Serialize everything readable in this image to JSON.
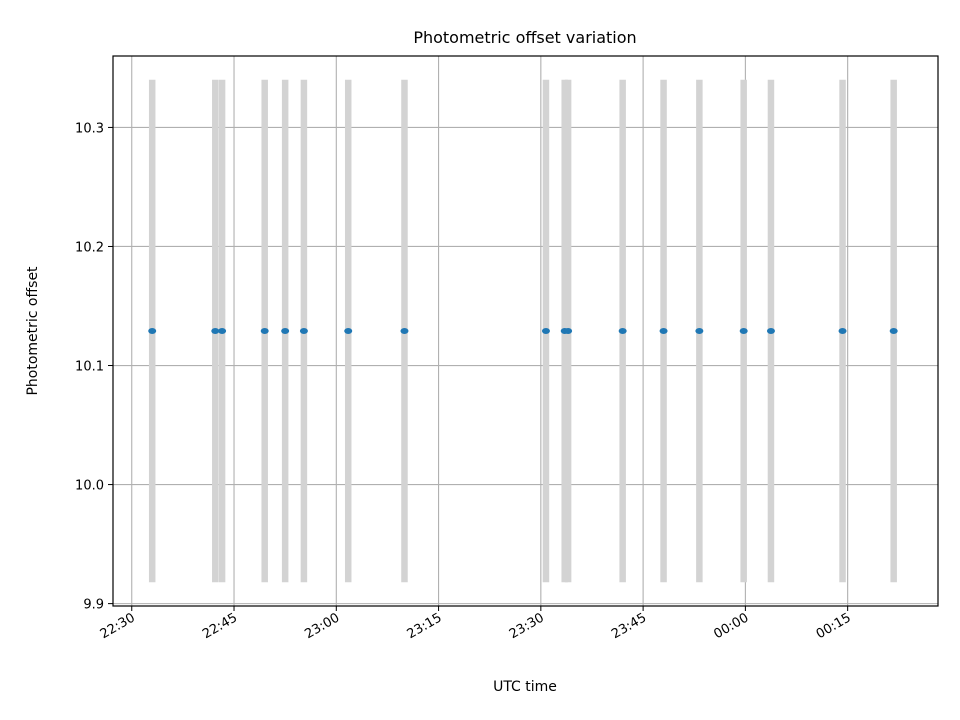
{
  "chart_data": {
    "type": "scatter",
    "title": "Photometric offset variation",
    "xlabel": "UTC time",
    "ylabel": "Photometric offset",
    "xlim": [
      "22:27:15",
      "00:28:15"
    ],
    "ylim": [
      9.898,
      10.36
    ],
    "x_ticks": [
      "22:30",
      "22:45",
      "23:00",
      "23:15",
      "23:30",
      "23:45",
      "00:00",
      "00:15"
    ],
    "y_ticks": [
      "9.9",
      "10.0",
      "10.1",
      "10.2",
      "10.3"
    ],
    "grid": true,
    "marker_color": "#1f77b4",
    "errorbar_color": "#d3d3d3",
    "errorbar_range": [
      9.918,
      10.34
    ],
    "points": [
      {
        "x": "22:33:00",
        "y": 10.129
      },
      {
        "x": "22:42:15",
        "y": 10.129
      },
      {
        "x": "22:43:15",
        "y": 10.129
      },
      {
        "x": "22:49:30",
        "y": 10.129
      },
      {
        "x": "22:52:30",
        "y": 10.129
      },
      {
        "x": "22:55:15",
        "y": 10.129
      },
      {
        "x": "23:01:45",
        "y": 10.129
      },
      {
        "x": "23:10:00",
        "y": 10.129
      },
      {
        "x": "23:30:45",
        "y": 10.129
      },
      {
        "x": "23:33:30",
        "y": 10.129
      },
      {
        "x": "23:34:00",
        "y": 10.129
      },
      {
        "x": "23:42:00",
        "y": 10.129
      },
      {
        "x": "23:48:00",
        "y": 10.129
      },
      {
        "x": "23:53:15",
        "y": 10.129
      },
      {
        "x": "23:59:45",
        "y": 10.129
      },
      {
        "x": "00:03:45",
        "y": 10.129
      },
      {
        "x": "00:14:15",
        "y": 10.129
      },
      {
        "x": "00:21:45",
        "y": 10.129
      }
    ]
  }
}
